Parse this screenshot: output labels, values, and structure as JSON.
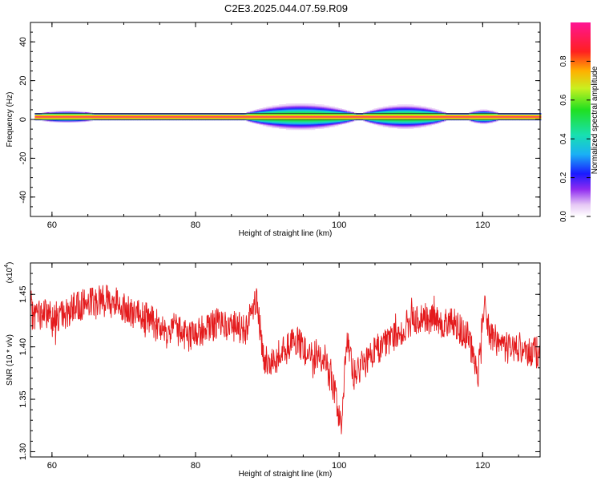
{
  "title": "C2E3.2025.044.07.59.R09",
  "colors": {
    "snr_line": "#e41a1c",
    "axis": "#000000",
    "background": "#ffffff"
  },
  "chart_data": [
    {
      "type": "heatmap",
      "xlabel": "Height of straight line (km)",
      "ylabel": "Frequency (Hz)",
      "xlim": [
        57,
        128
      ],
      "ylim": [
        -50,
        50
      ],
      "xticks": [
        "60",
        "80",
        "100",
        "120"
      ],
      "yticks": [
        "40",
        "20",
        "0",
        "-20",
        "-40"
      ],
      "colorbar": {
        "label": "Normalized spectral amplitude",
        "range": [
          0,
          1
        ],
        "ticks": [
          "0.0",
          "0.2",
          "0.4",
          "0.6",
          "0.8"
        ]
      },
      "band": {
        "center_hz": 1.5,
        "core_halfwidth_hz": 1.0,
        "spread_regions": [
          {
            "x": [
              88,
              101
            ],
            "spread_hz": 4.5
          },
          {
            "x": [
              104,
              114
            ],
            "spread_hz": 4.0
          },
          {
            "x": [
              118,
              122
            ],
            "spread_hz": 2.0
          },
          {
            "x": [
              58,
              66
            ],
            "spread_hz": 1.5
          }
        ]
      }
    },
    {
      "type": "line",
      "xlabel": "Height of straight line (km)",
      "ylabel": "SNR (10 * v/v)",
      "y_multiplier_label": "(x10",
      "y_multiplier_exp": "4",
      "y_multiplier_close": ")",
      "xlim": [
        57,
        128
      ],
      "ylim": [
        1.295,
        1.48
      ],
      "xticks": [
        "60",
        "80",
        "100",
        "120"
      ],
      "yticks": [
        "1.45",
        "1.40",
        "1.35",
        "1.30"
      ],
      "series": [
        {
          "x": [
            57,
            59,
            61,
            63,
            65,
            67,
            69,
            71,
            73,
            75,
            77,
            79,
            81,
            83,
            85,
            87,
            88.5,
            89.5,
            90.5,
            92,
            94,
            96,
            98,
            99.5,
            100.3,
            101,
            102,
            104,
            106,
            108,
            110,
            112,
            114,
            116,
            118,
            119.3,
            120.2,
            121,
            123,
            125,
            127,
            128
          ],
          "y": [
            1.43,
            1.432,
            1.428,
            1.437,
            1.443,
            1.446,
            1.444,
            1.432,
            1.428,
            1.42,
            1.418,
            1.41,
            1.416,
            1.422,
            1.42,
            1.417,
            1.448,
            1.388,
            1.382,
            1.395,
            1.405,
            1.392,
            1.388,
            1.355,
            1.318,
            1.41,
            1.372,
            1.388,
            1.402,
            1.41,
            1.425,
            1.428,
            1.424,
            1.422,
            1.41,
            1.37,
            1.445,
            1.412,
            1.398,
            1.4,
            1.395,
            1.392
          ]
        }
      ]
    }
  ]
}
